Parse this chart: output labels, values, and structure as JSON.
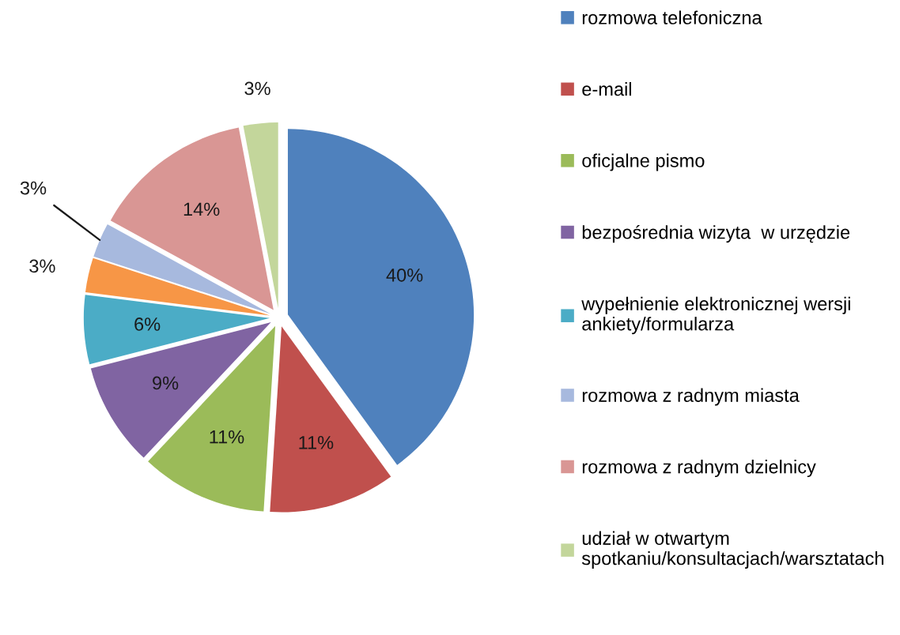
{
  "chart_data": {
    "type": "pie",
    "categories": [
      "rozmowa telefoniczna",
      "e-mail",
      "oficjalne pismo",
      "bezpośrednia wizyta  w urzędzie",
      "wypełnienie elektronicznej wersji\nankiety/formularza",
      null,
      "rozmowa z radnym miasta",
      "rozmowa z radnym dzielnicy",
      "udział w otwartym\nspotkaniu/konsultacjach/warsztatach"
    ],
    "values": [
      40,
      11,
      11,
      9,
      6,
      3,
      3,
      14,
      3
    ],
    "colors": [
      "#4f81bd",
      "#c0504d",
      "#9bbb59",
      "#8064a2",
      "#4bacc6",
      "#f79646",
      "#a7b9de",
      "#d99694",
      "#c3d69b"
    ],
    "value_labels": [
      "40%",
      "11%",
      "11%",
      "9%",
      "6%",
      "3%",
      "3%",
      "14%",
      "3%"
    ],
    "legend": "right"
  }
}
